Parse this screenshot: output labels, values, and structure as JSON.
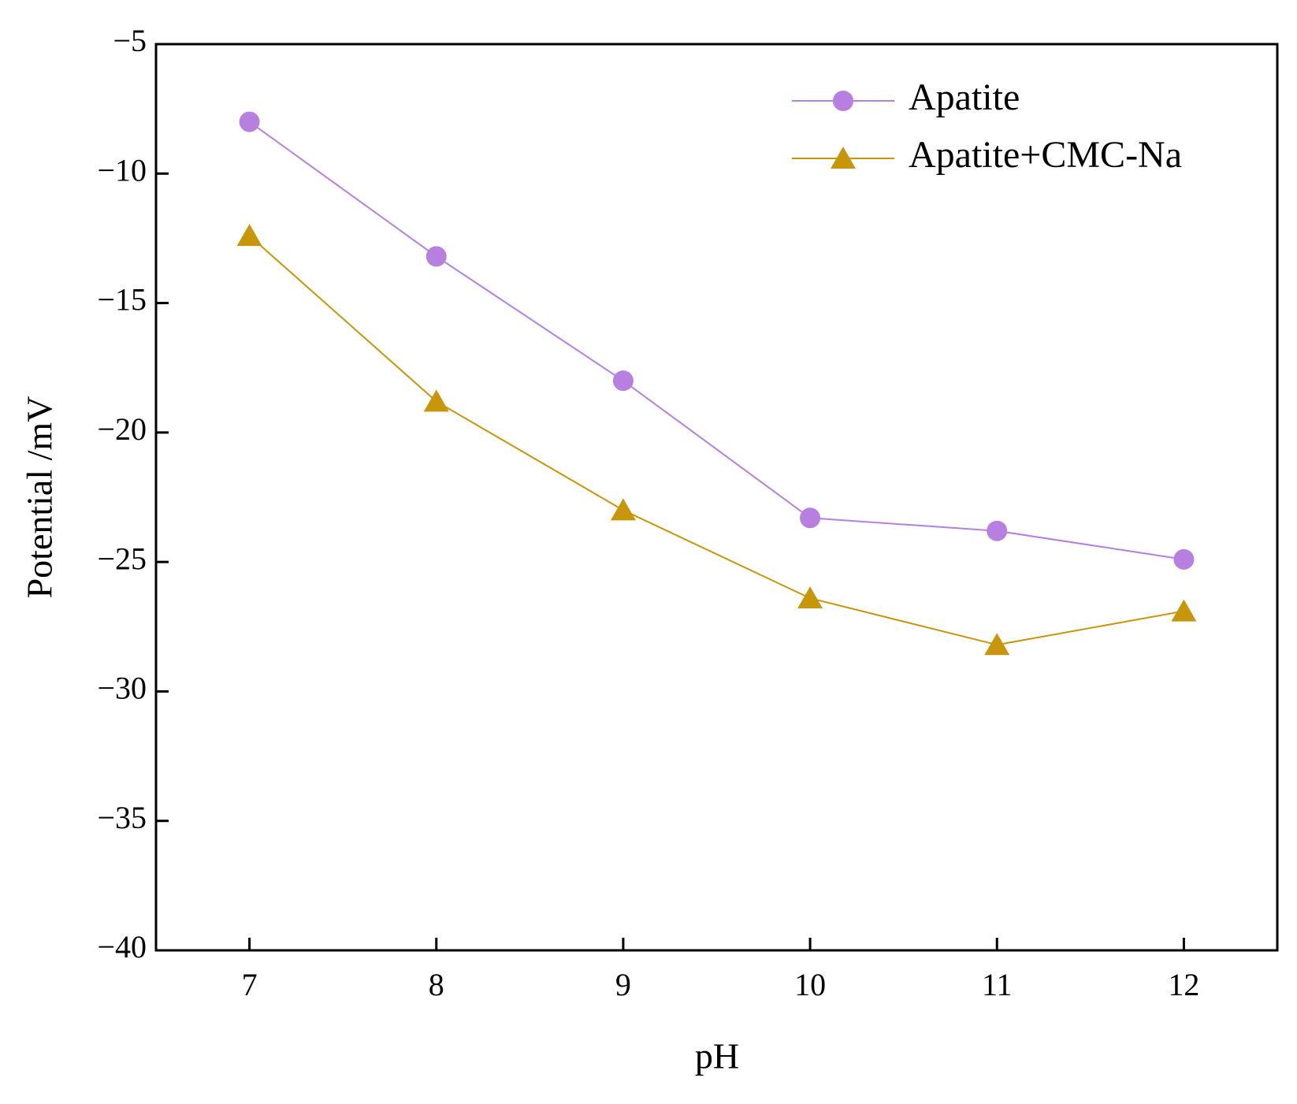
{
  "chart_data": {
    "type": "line",
    "x_label": "pH",
    "y_label": "Potential /mV",
    "x": [
      7,
      8,
      9,
      10,
      11,
      12
    ],
    "series": [
      {
        "name": "Apatite",
        "color": "#b67fe0",
        "marker": "circle",
        "values": [
          -8.0,
          -13.2,
          -18.0,
          -23.3,
          -23.8,
          -24.9
        ]
      },
      {
        "name": "Apatite+CMC-Na",
        "color": "#c8960a",
        "marker": "triangle",
        "values": [
          -12.4,
          -18.8,
          -23.0,
          -26.4,
          -28.2,
          -26.9
        ]
      }
    ],
    "xlim": [
      6.5,
      12.5
    ],
    "xticks": [
      7,
      8,
      9,
      10,
      11,
      12
    ],
    "ylim": [
      -40,
      -5
    ],
    "yticks": [
      {
        "value": -5,
        "label": "−5"
      },
      {
        "value": -10,
        "label": "−10"
      },
      {
        "value": -15,
        "label": "−15"
      },
      {
        "value": -20,
        "label": "−20"
      },
      {
        "value": -25,
        "label": "−25"
      },
      {
        "value": -30,
        "label": "−30"
      },
      {
        "value": -35,
        "label": "−35"
      },
      {
        "value": -40,
        "label": "−40"
      }
    ],
    "grid": false,
    "legend": "upper right"
  }
}
